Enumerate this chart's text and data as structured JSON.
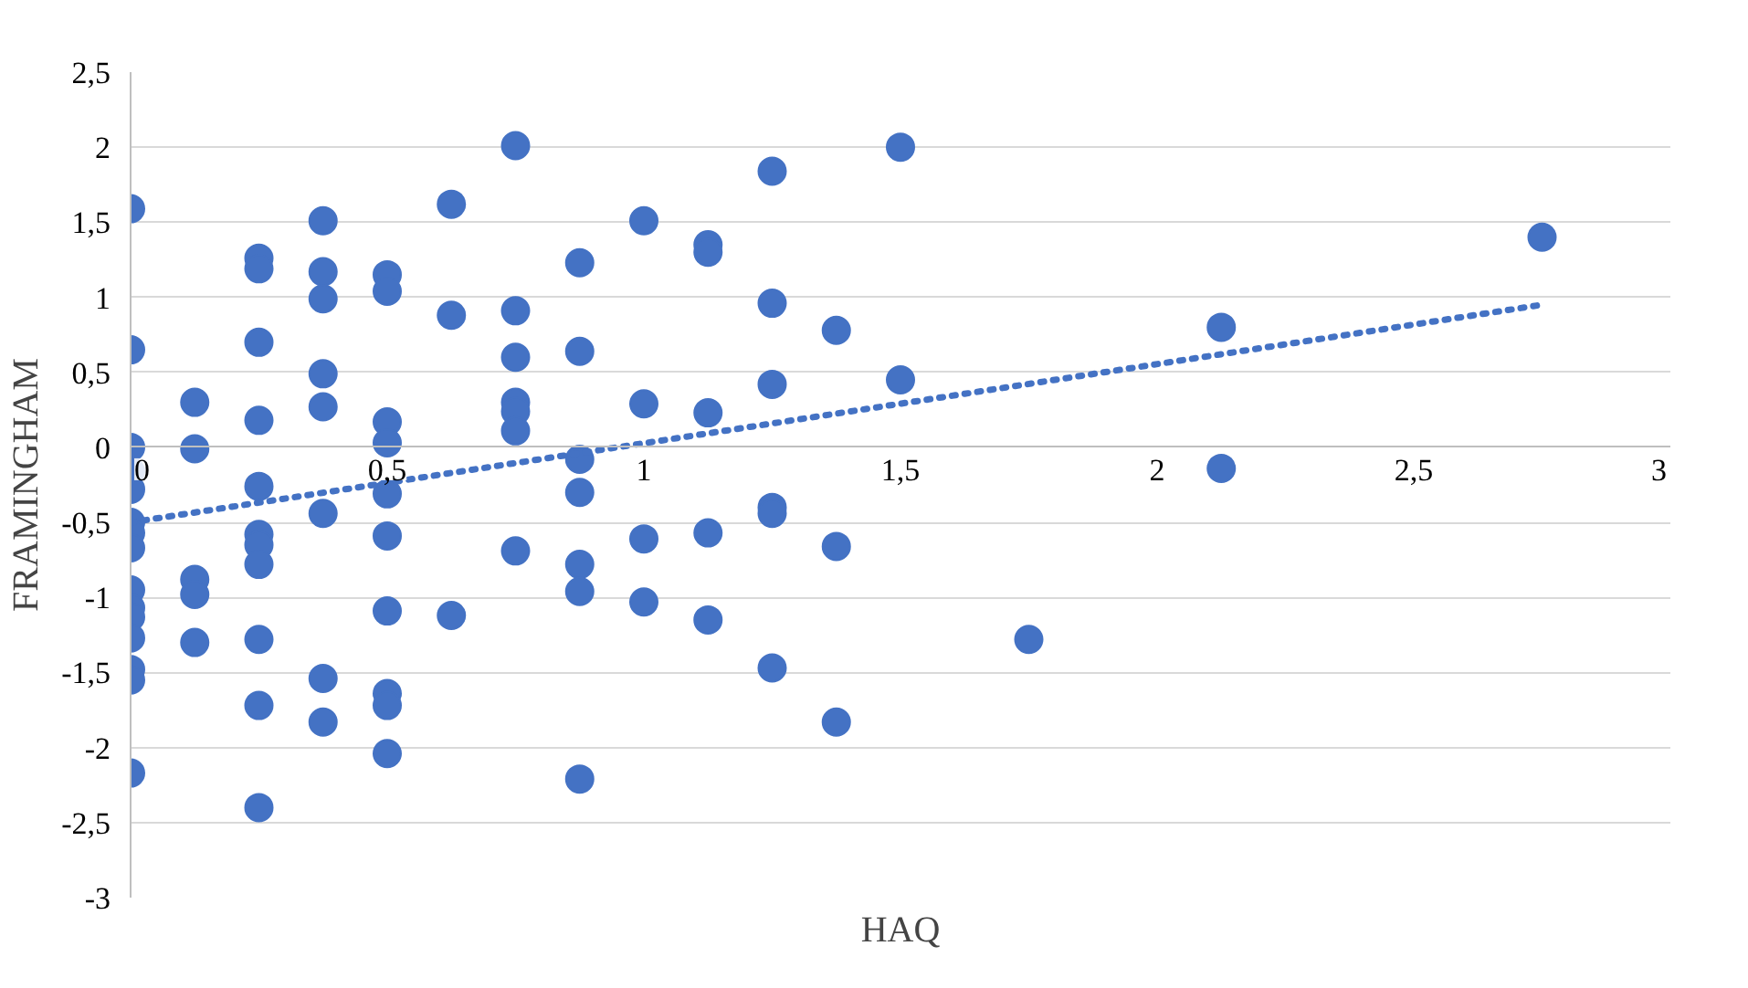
{
  "chart_data": {
    "type": "scatter",
    "xlabel": "HAQ",
    "ylabel": "FRAMINGHAM",
    "xlim": [
      0,
      3
    ],
    "ylim": [
      -3,
      2.5
    ],
    "xticks": [
      0,
      {
        "value": 0.5,
        "label": "0,5"
      },
      1,
      {
        "value": 1.5,
        "label": "1,5"
      },
      2,
      {
        "value": 2.5,
        "label": "2,5"
      },
      3
    ],
    "yticks": [
      -3,
      {
        "value": -2.5,
        "label": "-2,5"
      },
      -2,
      {
        "value": -1.5,
        "label": "-1,5"
      },
      -1,
      {
        "value": -0.5,
        "label": "-0,5"
      },
      0,
      {
        "value": 0.5,
        "label": "0,5"
      },
      1,
      {
        "value": 1.5,
        "label": "1,5"
      },
      2,
      {
        "value": 2.5,
        "label": "2,5"
      }
    ],
    "grid": "y",
    "series": [
      {
        "color": "#4472c4",
        "marker": "circle",
        "x": [
          0,
          0,
          0,
          0,
          0,
          0,
          0,
          0,
          0,
          0,
          0,
          0,
          0,
          0,
          0,
          0.125,
          0.125,
          0.125,
          0.125,
          0.125,
          0.25,
          0.25,
          0.25,
          0.25,
          0.25,
          0.25,
          0.25,
          0.25,
          0.25,
          0.25,
          0.25,
          0.375,
          0.375,
          0.375,
          0.375,
          0.375,
          0.375,
          0.375,
          0.375,
          0.5,
          0.5,
          0.5,
          0.5,
          0.5,
          0.5,
          0.5,
          0.5,
          0.5,
          0.5,
          0.625,
          0.625,
          0.625,
          0.75,
          0.75,
          0.75,
          0.75,
          0.75,
          0.75,
          0.75,
          0.875,
          0.875,
          0.875,
          0.875,
          0.875,
          0.875,
          0.875,
          1,
          1,
          1,
          1,
          1.125,
          1.125,
          1.125,
          1.125,
          1.125,
          1.25,
          1.25,
          1.25,
          1.25,
          1.25,
          1.25,
          1.375,
          1.375,
          1.375,
          1.5,
          1.5,
          1.75,
          2.125,
          2.125,
          2.75
        ],
        "values": [
          1.59,
          0.65,
          0,
          -0.16,
          -0.28,
          -0.5,
          -0.57,
          -0.67,
          -0.95,
          -1.07,
          -1.13,
          -1.27,
          -1.48,
          -1.55,
          -2.17,
          0.3,
          -0.01,
          -0.88,
          -0.98,
          -1.3,
          1.26,
          1.19,
          0.7,
          0.18,
          -0.26,
          -0.58,
          -0.65,
          -0.78,
          -1.28,
          -1.72,
          -2.4,
          1.51,
          1.17,
          0.99,
          0.49,
          0.27,
          -0.44,
          -1.54,
          -1.83,
          1.15,
          1.04,
          0.17,
          0.03,
          -0.31,
          -0.59,
          -1.09,
          -1.64,
          -1.72,
          -2.04,
          1.62,
          0.88,
          -1.12,
          2.01,
          0.91,
          0.6,
          0.3,
          0.24,
          0.11,
          -0.69,
          1.23,
          0.64,
          -0.08,
          -0.3,
          -0.78,
          -0.96,
          -2.21,
          1.51,
          0.29,
          -0.61,
          -1.03,
          1.35,
          1.3,
          0.23,
          -0.57,
          -1.15,
          1.84,
          0.96,
          0.42,
          -0.4,
          -0.44,
          -1.47,
          0.78,
          -0.66,
          -1.83,
          2.0,
          0.45,
          -1.28,
          0.8,
          -0.14,
          1.4
        ]
      },
      {
        "type": "line",
        "color": "#4472c4",
        "line_style": "dotted",
        "x": [
          0,
          2.75
        ],
        "values": [
          -0.5,
          0.95
        ]
      }
    ]
  }
}
